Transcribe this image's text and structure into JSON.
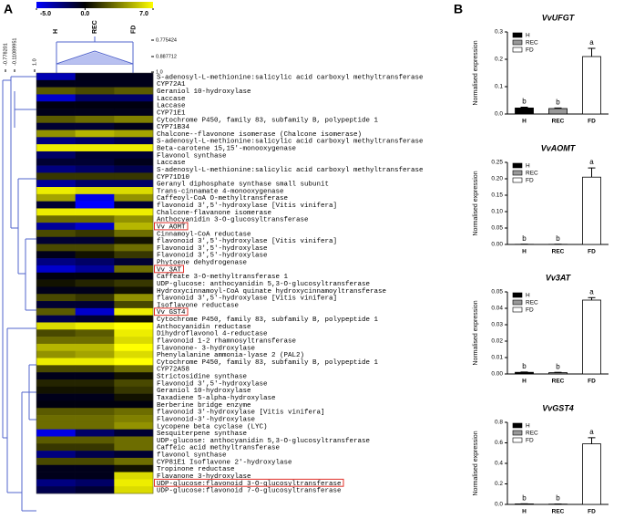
{
  "panel_labels": [
    "A",
    "B"
  ],
  "chart_data": [
    {
      "type": "heatmap",
      "x": [
        "H",
        "REC",
        "FD"
      ],
      "y": [
        "S-adenosyl-L-methionine:salicylic acid carboxyl methyltransferase",
        "CYP72A1",
        "Geraniol 10-hydroxylase",
        "Laccase",
        "Laccase",
        "CYP71E1",
        "Cytochrome P450, family 83, subfamily B, polypeptide 1",
        "CYP71B34",
        "Chalcone--flavonone isomerase (Chalcone isomerase)",
        "S-adenosyl-L-methionine:salicylic acid carboxyl methyltransferase",
        "Beta-carotene 15,15'-monooxygenase",
        "Flavonol synthase",
        "Laccase",
        "S-adenosyl-L-methionine:salicylic acid carboxyl methyltransferase",
        "CYP71D10",
        "Geranyl diphosphate synthase small subunit",
        "Trans-cinnamate 4-monooxygenase",
        "Caffeoyl-CoA O-methyltransferase",
        "flavonoid 3',5'-hydroxylase [Vitis vinifera]",
        "Chalcone-flavanone isomerase",
        "Anthocyanidin 3-O-glucosyltransferase",
        "Vv AOMT",
        "Cinnamoyl-CoA reductase",
        "flavonoid 3',5'-hydroxylase [Vitis vinifera]",
        "Flavonoid 3',5'-hydroxylase",
        "Flavonoid 3',5'-hydroxylase",
        "Phytoene dehydrogenase",
        "Vv 3AT",
        "Caffeate 3-O-methyltransferase 1",
        "UDP-glucose: anthocyanidin 5,3-O-glucosyltransferase",
        "Hydroxycinnamoyl-CoA quinate hydroxycinnamoyltransferase",
        "flavonoid 3',5'-hydroxylase [Vitis vinifera]",
        "Isoflavone reductase",
        "Vv GST4",
        "Cytochrome P450, family 83, subfamily B, polypeptide 1",
        "Anthocyanidin reductase",
        "Dihydroflavonol 4-reductase",
        "flavonoid 1-2 rhamnosyltransferase",
        "Flavonone- 3-hydroxylase",
        "Phenylalanine ammonia-lyase 2 (PAL2)",
        "Cytochrome P450, family 83, subfamily B, polypeptide 1",
        "CYP72A58",
        "Strictosidine synthase",
        "Flavonoid 3',5'-hydroxylase",
        "Geraniol 10-hydroxylase",
        "Taxadiene 5-alpha-hydroxylase",
        "Berberine bridge enzyme",
        "flavonoid 3'-hydroxylase [Vitis vinifera]",
        "Flavonoid-3'-hydroxylase",
        "Lycopene beta cyclase (LYC)",
        "Sesquiterpene synthase",
        "UDP-glucose: anthocyanidin 5,3-O-glucosyltransferase",
        "Caffeic acid methyltransferase",
        "flavonol synthase",
        "CYP81E1 Isoflavone 2'-hydroxylase",
        "Tropinone reductase",
        "Flavanone 3-hydroxylase",
        "UDP-glucose:flavonoid 3-O-glucosyltransferase",
        "UDP-glucose:flavonoid 7-O-glucosyltransferase"
      ],
      "values": [
        [
          -3.5,
          -0.5,
          -0.5
        ],
        [
          -0.5,
          -0.5,
          -0.5
        ],
        [
          2.5,
          2,
          2.5
        ],
        [
          -4,
          -2,
          -2
        ],
        [
          -0.3,
          -0.3,
          -0.3
        ],
        [
          -0.5,
          -0.5,
          -0.5
        ],
        [
          2.5,
          3,
          3.5
        ],
        [
          -1,
          -1,
          -0.5
        ],
        [
          4,
          5,
          4.5
        ],
        [
          -2.5,
          -2,
          -1.5
        ],
        [
          6.5,
          6.5,
          6.5
        ],
        [
          -2,
          -1,
          -1
        ],
        [
          -1,
          -1,
          -0.5
        ],
        [
          -2.5,
          -2,
          -1.5
        ],
        [
          1.5,
          1.5,
          1.5
        ],
        [
          -3,
          -2,
          -2
        ],
        [
          6.5,
          6,
          6
        ],
        [
          4.5,
          -4.5,
          4
        ],
        [
          -1,
          -5,
          -1
        ],
        [
          6.5,
          6.5,
          6.5
        ],
        [
          3,
          3,
          4
        ],
        [
          -3,
          -4,
          5
        ],
        [
          2,
          1.5,
          3
        ],
        [
          -1,
          -1,
          0.5
        ],
        [
          2,
          2,
          3
        ],
        [
          -0.5,
          0.5,
          1.5
        ],
        [
          -2.5,
          -2,
          -1
        ],
        [
          -4,
          -3,
          3
        ],
        [
          -0.3,
          -0.3,
          -0.3
        ],
        [
          0.5,
          1,
          1.5
        ],
        [
          -0.5,
          -0.5,
          0.5
        ],
        [
          2,
          1.5,
          4
        ],
        [
          -1,
          -1,
          2
        ],
        [
          2.5,
          -4,
          6.5
        ],
        [
          -1.5,
          -1,
          0.5
        ],
        [
          6,
          6.5,
          7
        ],
        [
          2,
          2.5,
          6.5
        ],
        [
          3,
          3,
          6
        ],
        [
          5,
          5,
          7
        ],
        [
          4,
          4.5,
          6
        ],
        [
          6.5,
          6.5,
          7
        ],
        [
          2,
          2,
          3
        ],
        [
          -0.5,
          -0.5,
          0.5
        ],
        [
          1,
          1,
          2
        ],
        [
          0.5,
          0.5,
          1.5
        ],
        [
          -0.5,
          -0.5,
          0.5
        ],
        [
          -0.3,
          -0.3,
          -0.3
        ],
        [
          2.5,
          2.5,
          3
        ],
        [
          3,
          3,
          3.5
        ],
        [
          3,
          3,
          4
        ],
        [
          -4.5,
          -2,
          -1
        ],
        [
          2.5,
          2.5,
          3
        ],
        [
          1.5,
          1.5,
          3
        ],
        [
          -2.5,
          -1.5,
          -1
        ],
        [
          2,
          2,
          3
        ],
        [
          -0.5,
          -0.5,
          0.5
        ],
        [
          -0.5,
          -0.5,
          6
        ],
        [
          -2.5,
          -2,
          6.5
        ],
        [
          -1.5,
          -1,
          6
        ]
      ],
      "colorbar": {
        "lim": [
          -5,
          7
        ],
        "ticks": [
          {
            "value": -5,
            "label": "-5.0"
          },
          {
            "value": 0,
            "label": "0.0"
          },
          {
            "value": 7,
            "label": "7.0"
          }
        ],
        "colors": [
          "#0000ff",
          "#000000",
          "#ffff00"
        ]
      },
      "highlight_rows": [
        21,
        27,
        33,
        57
      ],
      "highlight_color": "#e0302a",
      "col_dendrogram_ticks": [
        0.775424,
        0.887712,
        {
          "value": 1,
          "label": "1.0"
        }
      ],
      "row_dendrogram_ticks": [
        -0.778201,
        -0.11089951,
        {
          "value": 1,
          "label": "1.0"
        }
      ]
    },
    {
      "type": "bar",
      "title": "VvUFGT",
      "ylabel": "Normalised expression",
      "categories": [
        "H",
        "REC",
        "FD"
      ],
      "values": [
        0.022,
        0.02,
        0.21
      ],
      "errors": [
        0.003,
        0.002,
        0.03
      ],
      "annotations": [
        "b",
        "b",
        "a"
      ],
      "colors": [
        "#000000",
        "#999999",
        "#ffffff"
      ],
      "ylim": [
        0,
        0.3
      ],
      "yticks": [
        {
          "value": 0,
          "label": "0.0"
        },
        0.1,
        0.2,
        0.3
      ]
    },
    {
      "type": "bar",
      "title": "VvAOMT",
      "ylabel": "Normalised expression",
      "categories": [
        "H",
        "REC",
        "FD"
      ],
      "values": [
        0.0005,
        0.0005,
        0.205
      ],
      "errors": [
        0.0002,
        0.0002,
        0.028
      ],
      "annotations": [
        "b",
        "b",
        "a"
      ],
      "colors": [
        "#000000",
        "#999999",
        "#ffffff"
      ],
      "ylim": [
        0,
        0.25
      ],
      "yticks": [
        {
          "value": 0,
          "label": "0.00"
        },
        0.05,
        {
          "value": 0.1,
          "label": "0.10"
        },
        0.15,
        {
          "value": 0.2,
          "label": "0.20"
        },
        0.25
      ]
    },
    {
      "type": "bar",
      "title": "Vv3AT",
      "ylabel": "Normalised expression",
      "categories": [
        "H",
        "REC",
        "FD"
      ],
      "values": [
        0.001,
        0.0008,
        0.045
      ],
      "errors": [
        0.0002,
        0.0002,
        0.0015
      ],
      "annotations": [
        "b",
        "b",
        "a"
      ],
      "colors": [
        "#000000",
        "#999999",
        "#ffffff"
      ],
      "ylim": [
        0,
        0.05
      ],
      "yticks": [
        {
          "value": 0,
          "label": "0.00"
        },
        0.01,
        0.02,
        0.03,
        0.04,
        0.05
      ]
    },
    {
      "type": "bar",
      "title": "VvGST4",
      "ylabel": "Normalised expression",
      "categories": [
        "H",
        "REC",
        "FD"
      ],
      "values": [
        0.005,
        0.003,
        0.59
      ],
      "errors": [
        0.001,
        0.001,
        0.06
      ],
      "annotations": [
        "b",
        "b",
        "a"
      ],
      "colors": [
        "#000000",
        "#999999",
        "#ffffff"
      ],
      "ylim": [
        0,
        0.8
      ],
      "yticks": [
        {
          "value": 0,
          "label": "0.0"
        },
        0.2,
        0.4,
        0.6,
        0.8
      ]
    }
  ]
}
